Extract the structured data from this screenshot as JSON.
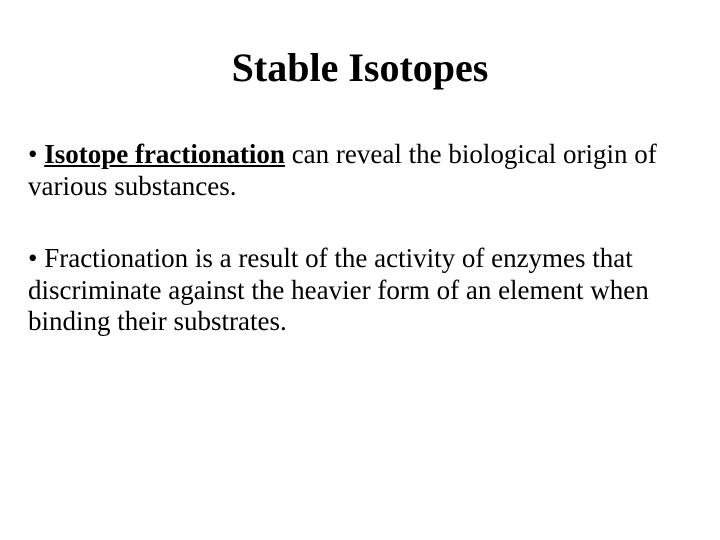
{
  "slide": {
    "title": "Stable Isotopes",
    "title_fontsize": 40,
    "title_fontweight": "bold",
    "title_align": "center",
    "body_fontsize": 27,
    "text_color": "#000000",
    "background_color": "#ffffff",
    "font_family": "Times New Roman",
    "bullets": [
      {
        "marker": "• ",
        "keyword": "Isotope fractionation",
        "rest": " can reveal the biological origin of various substances.",
        "keyword_style": {
          "bold": true,
          "underline": true
        }
      },
      {
        "marker": "• ",
        "keyword": "",
        "rest": "Fractionation is a result of the activity of enzymes that discriminate against the heavier form of an element when binding their substrates."
      }
    ]
  }
}
